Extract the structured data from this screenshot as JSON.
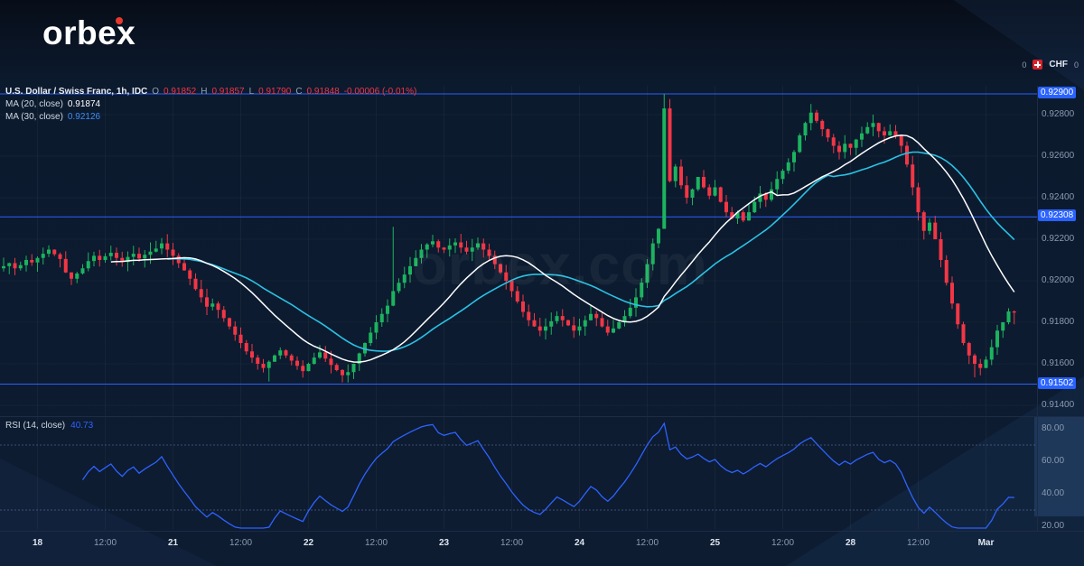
{
  "logo": {
    "text": "orbex"
  },
  "watermark": {
    "text": "orbex.com"
  },
  "legend": {
    "title": "U.S. Dollar / Swiss Franc, 1h, IDC",
    "o_label": "O",
    "o": "0.91852",
    "h_label": "H",
    "h": "0.91857",
    "l_label": "L",
    "l": "0.91790",
    "c_label": "C",
    "c": "0.91848",
    "change": "-0.00006 (-0.01%)",
    "ma20_label": "MA (20, close)",
    "ma20_value": "0.91874",
    "ma30_label": "MA (30, close)",
    "ma30_value": "0.92126",
    "rsi_label": "RSI (14, close)",
    "rsi_value": "40.73"
  },
  "colors": {
    "accent": "#2962ff",
    "up": "#1cb35f",
    "down": "#f23645",
    "ma20": "#ffffff",
    "ma30": "#2ac2e4",
    "ma30_value": "#3f8cf2",
    "rsi": "#2e62ff",
    "flag": "#d8232a",
    "logo_dot": "#e8392e"
  },
  "price_axis": {
    "currency": {
      "left": "0",
      "code": "CHF",
      "right": "0"
    },
    "ticks": [
      {
        "text": "0.92800",
        "value": 0.928
      },
      {
        "text": "0.92600",
        "value": 0.926
      },
      {
        "text": "0.92400",
        "value": 0.924
      },
      {
        "text": "0.92200",
        "value": 0.922
      },
      {
        "text": "0.92000",
        "value": 0.92
      },
      {
        "text": "0.91800",
        "value": 0.918
      },
      {
        "text": "0.91600",
        "value": 0.916
      },
      {
        "text": "0.91400",
        "value": 0.914
      }
    ],
    "badges": [
      {
        "text": "0.92900",
        "value": 0.929
      },
      {
        "text": "0.92308",
        "value": 0.92308
      },
      {
        "text": "0.91502",
        "value": 0.91502
      }
    ]
  },
  "rsi_axis": {
    "ticks": [
      {
        "text": "80.00",
        "value": 80
      },
      {
        "text": "60.00",
        "value": 60
      },
      {
        "text": "40.00",
        "value": 40
      },
      {
        "text": "20.00",
        "value": 20
      }
    ]
  },
  "time_axis": {
    "labels": [
      {
        "text": "18",
        "bar": 6,
        "major": true
      },
      {
        "text": "12:00",
        "bar": 18
      },
      {
        "text": "21",
        "bar": 30,
        "major": true
      },
      {
        "text": "12:00",
        "bar": 42
      },
      {
        "text": "22",
        "bar": 54,
        "major": true
      },
      {
        "text": "12:00",
        "bar": 66
      },
      {
        "text": "23",
        "bar": 78,
        "major": true
      },
      {
        "text": "12:00",
        "bar": 90
      },
      {
        "text": "24",
        "bar": 102,
        "major": true
      },
      {
        "text": "12:00",
        "bar": 114
      },
      {
        "text": "25",
        "bar": 126,
        "major": true
      },
      {
        "text": "12:00",
        "bar": 138
      },
      {
        "text": "28",
        "bar": 150,
        "major": true
      },
      {
        "text": "12:00",
        "bar": 162
      },
      {
        "text": "Mar",
        "bar": 174,
        "major": true
      }
    ]
  },
  "chart_data": {
    "type": "candlestick",
    "title": "U.S. Dollar / Swiss Franc, 1h, IDC",
    "interval": "1h",
    "currency": "CHF",
    "ylim": [
      0.91374,
      0.92939
    ],
    "levels": [
      0.929,
      0.92308,
      0.91502
    ],
    "legend_position": "top-left",
    "grid": "faint-vertical",
    "first_open": 0.9206,
    "wick_amp": 0.00045,
    "closes": [
      0.9207,
      0.92085,
      0.9206,
      0.92075,
      0.921,
      0.92088,
      0.9211,
      0.9213,
      0.9215,
      0.92128,
      0.92105,
      0.9204,
      0.9201,
      0.92035,
      0.9206,
      0.92095,
      0.9212,
      0.921,
      0.92118,
      0.92135,
      0.9211,
      0.9209,
      0.92115,
      0.9213,
      0.92108,
      0.92125,
      0.9214,
      0.92155,
      0.9218,
      0.9215,
      0.9212,
      0.92085,
      0.9205,
      0.9201,
      0.9196,
      0.9192,
      0.91875,
      0.9189,
      0.9186,
      0.9182,
      0.9178,
      0.9174,
      0.917,
      0.9166,
      0.9163,
      0.916,
      0.9158,
      0.9161,
      0.9164,
      0.91665,
      0.9164,
      0.91615,
      0.9159,
      0.91565,
      0.916,
      0.9163,
      0.91655,
      0.91625,
      0.91595,
      0.9157,
      0.91545,
      0.9156,
      0.916,
      0.9165,
      0.917,
      0.9175,
      0.918,
      0.9184,
      0.9188,
      0.9195,
      0.9199,
      0.9203,
      0.9207,
      0.9211,
      0.9215,
      0.92175,
      0.9219,
      0.9216,
      0.9215,
      0.9217,
      0.92185,
      0.9216,
      0.9214,
      0.9216,
      0.9218,
      0.9215,
      0.9212,
      0.9208,
      0.9204,
      0.92,
      0.9195,
      0.919,
      0.9185,
      0.9181,
      0.9178,
      0.9176,
      0.9178,
      0.91805,
      0.9183,
      0.9181,
      0.91785,
      0.9176,
      0.9178,
      0.9181,
      0.9184,
      0.9182,
      0.9178,
      0.9175,
      0.9177,
      0.918,
      0.9183,
      0.9187,
      0.9192,
      0.9199,
      0.9208,
      0.9218,
      0.9225,
      0.9283,
      0.9248,
      0.9255,
      0.9246,
      0.924,
      0.9244,
      0.925,
      0.9245,
      0.9241,
      0.9245,
      0.9238,
      0.9233,
      0.923,
      0.9233,
      0.9229,
      0.9233,
      0.9238,
      0.9242,
      0.9239,
      0.9244,
      0.9249,
      0.9253,
      0.9257,
      0.9262,
      0.927,
      0.9276,
      0.9281,
      0.9277,
      0.9273,
      0.9269,
      0.9265,
      0.9262,
      0.9266,
      0.9264,
      0.9268,
      0.9271,
      0.9274,
      0.9276,
      0.9272,
      0.927,
      0.9272,
      0.927,
      0.9265,
      0.9256,
      0.9245,
      0.9233,
      0.9224,
      0.9228,
      0.922,
      0.921,
      0.9199,
      0.9189,
      0.9179,
      0.917,
      0.9164,
      0.916,
      0.9158,
      0.9162,
      0.9168,
      0.9176,
      0.918,
      0.91852,
      0.91848
    ],
    "overrides": {
      "47": {
        "l": 0.91515
      },
      "61": {
        "l": 0.9151
      },
      "69": {
        "h": 0.9226
      },
      "117": {
        "h": 0.929,
        "l": 0.9226
      },
      "172": {
        "l": 0.91535
      },
      "179": {
        "o": 0.91852,
        "h": 0.91857,
        "l": 0.9179,
        "c": 0.91848
      }
    },
    "ma": [
      {
        "period": 20,
        "color_key": "ma20",
        "last_value": 0.91874
      },
      {
        "period": 30,
        "color_key": "ma30",
        "last_value": 0.92126
      }
    ],
    "rsi": {
      "period": 14,
      "bands": [
        70,
        30
      ],
      "last_value": 40.73,
      "ylim_labels": [
        80,
        60,
        40,
        20
      ]
    }
  }
}
